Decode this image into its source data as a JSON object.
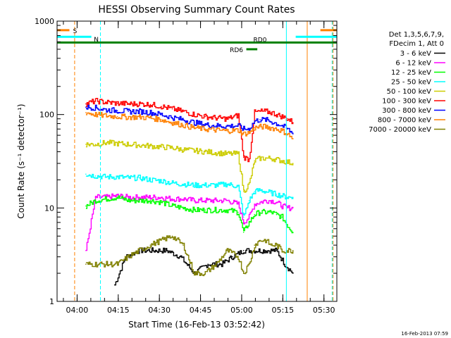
{
  "chart_data": {
    "type": "line",
    "title": "HESSI Observing Summary Count Rates",
    "xlabel": "Start Time (16-Feb-13 03:52:42)",
    "ylabel": "Count Rate (s⁻¹ detector⁻¹)",
    "footer_stamp": "16-Feb-2013 07:59",
    "x_unit": "minutes after 03:52:42",
    "xlim": [
      0,
      102
    ],
    "ylim": [
      1,
      1000
    ],
    "y_scale": "log",
    "x_ticks": [
      {
        "label": "04:00",
        "value": 7.3
      },
      {
        "label": "04:15",
        "value": 22.3
      },
      {
        "label": "04:30",
        "value": 37.3
      },
      {
        "label": "04:45",
        "value": 52.3
      },
      {
        "label": "05:00",
        "value": 67.3
      },
      {
        "label": "05:15",
        "value": 82.3
      },
      {
        "label": "05:30",
        "value": 97.3
      }
    ],
    "y_ticks": [
      {
        "label": "1",
        "value": 1
      },
      {
        "label": "10",
        "value": 10
      },
      {
        "label": "100",
        "value": 100
      },
      {
        "label": "1000",
        "value": 1000
      }
    ],
    "legend_header": [
      "Det 1,3,5,6,7,9,",
      "FDecim 1, Att 0"
    ],
    "series": [
      {
        "name": "3 - 6 keV",
        "color": "#000000",
        "x": [
          21,
          25,
          30,
          35,
          40,
          45,
          50,
          55,
          60,
          64,
          68,
          72,
          76,
          80,
          83,
          86
        ],
        "y": [
          1.5,
          3,
          3.5,
          3.5,
          3.5,
          3,
          2,
          2.5,
          2.5,
          3,
          3.5,
          3.5,
          3.5,
          3.5,
          2.5,
          2
        ]
      },
      {
        "name": "6 - 12 keV",
        "color": "#ff00ff",
        "x": [
          10.5,
          14,
          18,
          22,
          26,
          30,
          34,
          38,
          42,
          46,
          50,
          54,
          58,
          62,
          66,
          68,
          70,
          72,
          74,
          76,
          78,
          80,
          82,
          84,
          86
        ],
        "y": [
          3.5,
          13,
          13,
          13.5,
          13,
          13,
          13,
          13,
          12.5,
          12.5,
          12,
          12,
          12,
          12,
          11,
          7,
          8,
          11,
          11.5,
          12,
          12,
          11.5,
          10.5,
          10,
          10
        ]
      },
      {
        "name": "12 - 25 keV",
        "color": "#00ff00",
        "x": [
          10.5,
          14,
          18,
          22,
          26,
          30,
          34,
          38,
          42,
          46,
          50,
          54,
          58,
          62,
          66,
          68,
          70,
          72,
          74,
          76,
          78,
          80,
          82,
          84,
          86
        ],
        "y": [
          10.5,
          12,
          12.5,
          13,
          12,
          12,
          12,
          11.5,
          10.5,
          10,
          9.5,
          9.5,
          9.5,
          9.5,
          9,
          5.5,
          7,
          8.5,
          9,
          9,
          9,
          8.5,
          8,
          6.5,
          5.5
        ]
      },
      {
        "name": "25 - 50 keV",
        "color": "#00ffff",
        "x": [
          10.5,
          14,
          18,
          22,
          26,
          30,
          34,
          38,
          42,
          46,
          50,
          54,
          58,
          62,
          66,
          68,
          70,
          72,
          74,
          76,
          78,
          80,
          82,
          84,
          86
        ],
        "y": [
          23,
          22,
          21.5,
          21.5,
          21,
          21,
          20,
          19.5,
          18.5,
          18,
          17.5,
          17.5,
          17.5,
          18,
          17,
          8,
          12,
          15,
          15.5,
          15,
          14.5,
          14,
          13.5,
          13,
          13
        ]
      },
      {
        "name": "50 - 100 keV",
        "color": "#cccc00",
        "x": [
          10.5,
          14,
          18,
          22,
          26,
          30,
          34,
          38,
          42,
          46,
          50,
          54,
          58,
          62,
          66,
          68,
          70,
          72,
          74,
          76,
          78,
          80,
          82,
          84,
          86
        ],
        "y": [
          48,
          48,
          50,
          49,
          48,
          47,
          46,
          45,
          44,
          42,
          41,
          40,
          39,
          38,
          38,
          15,
          18,
          32,
          34,
          34,
          34,
          33,
          32,
          31,
          30
        ]
      },
      {
        "name": "100 - 300 keV",
        "color": "#ff0000",
        "x": [
          10.5,
          14,
          18,
          22,
          26,
          30,
          34,
          38,
          42,
          46,
          50,
          54,
          58,
          62,
          66,
          68,
          70,
          72,
          74,
          76,
          78,
          80,
          82,
          84,
          86
        ],
        "y": [
          130,
          140,
          135,
          132,
          130,
          130,
          128,
          122,
          115,
          108,
          100,
          95,
          92,
          90,
          98,
          35,
          33,
          105,
          108,
          108,
          105,
          100,
          95,
          90,
          82
        ]
      },
      {
        "name": "300 - 800 keV",
        "color": "#0000ff",
        "x": [
          10.5,
          14,
          18,
          22,
          26,
          30,
          34,
          38,
          42,
          46,
          50,
          54,
          58,
          62,
          66,
          68,
          70,
          72,
          74,
          76,
          78,
          80,
          82,
          84,
          86
        ],
        "y": [
          120,
          118,
          112,
          110,
          108,
          108,
          105,
          100,
          93,
          88,
          82,
          78,
          76,
          75,
          76,
          70,
          70,
          85,
          88,
          88,
          84,
          80,
          76,
          70,
          62
        ]
      },
      {
        "name": "800 - 7000 keV",
        "color": "#ff8000",
        "x": [
          10.5,
          14,
          18,
          22,
          26,
          30,
          34,
          38,
          42,
          46,
          50,
          54,
          58,
          62,
          66,
          68,
          70,
          72,
          74,
          76,
          78,
          80,
          82,
          84,
          86
        ],
        "y": [
          105,
          100,
          97,
          95,
          94,
          94,
          92,
          88,
          82,
          77,
          72,
          70,
          68,
          67,
          68,
          62,
          64,
          72,
          74,
          74,
          72,
          70,
          67,
          62,
          55
        ]
      },
      {
        "name": "7000 - 20000 keV",
        "color": "#808000",
        "x": [
          10.5,
          14,
          18,
          22,
          26,
          30,
          34,
          38,
          42,
          46,
          50,
          54,
          58,
          62,
          66,
          68,
          70,
          72,
          74,
          76,
          78,
          80,
          82,
          84,
          86
        ],
        "y": [
          2.5,
          2.5,
          2.5,
          2.5,
          3,
          3.5,
          4,
          4.5,
          5,
          4,
          2,
          2,
          2.5,
          3.5,
          3,
          2,
          2.5,
          4,
          4.5,
          4.5,
          4,
          4,
          3.5,
          3.5,
          3.5
        ]
      }
    ],
    "markers": [
      {
        "label": "S",
        "color": "#ff8000",
        "x": [
          0,
          4.5
        ],
        "y": 800
      },
      {
        "label": "",
        "color": "#ff8000",
        "x": [
          96,
          102
        ],
        "y": 800
      },
      {
        "label": "N",
        "color": "#00ffff",
        "x": [
          0,
          12.5
        ],
        "y": 680
      },
      {
        "label": "",
        "color": "#00ffff",
        "x": [
          87,
          102
        ],
        "y": 680
      },
      {
        "label": "RD0",
        "color": "#008000",
        "x": [
          0,
          102
        ],
        "y": 590
      },
      {
        "label": "RD6",
        "color": "#008000",
        "x": [
          69,
          73
        ],
        "y": 500
      }
    ],
    "vertical_lines": [
      {
        "x": 6.4,
        "color": "#ff8000",
        "style": "dashed"
      },
      {
        "x": 15.8,
        "color": "#00ffff",
        "style": "dashed"
      },
      {
        "x": 83.6,
        "color": "#00ffff",
        "style": "solid"
      },
      {
        "x": 91.2,
        "color": "#ff8000",
        "style": "solid"
      },
      {
        "x": 100.3,
        "color": "#00ffff",
        "style": "dashed"
      },
      {
        "x": 100.6,
        "color": "#ff8000",
        "style": "dashed"
      }
    ],
    "grid": false,
    "legend_position": "right"
  }
}
